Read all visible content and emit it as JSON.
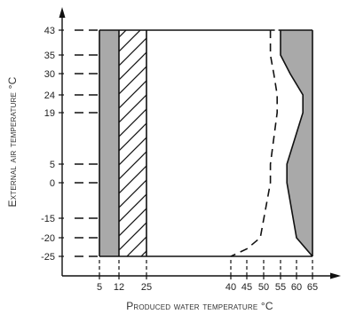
{
  "chart_data": {
    "type": "area",
    "xlabel": "Produced water temperature °C",
    "ylabel": "External air temperature °C",
    "x_ticks": [
      5,
      12,
      25,
      40,
      45,
      50,
      55,
      60,
      65
    ],
    "y_ticks": [
      -25,
      -20,
      -15,
      0,
      5,
      19,
      24,
      30,
      35,
      43
    ],
    "xlim": [
      0,
      67
    ],
    "ylim": [
      -25,
      43
    ],
    "grid": false,
    "boundary_outer": {
      "x": [
        55,
        55,
        58,
        62,
        62,
        57,
        57,
        60,
        65
      ],
      "y": [
        43,
        35,
        30,
        24,
        19,
        5,
        0,
        -20,
        -25
      ]
    },
    "boundary_inner_dashed": {
      "x": [
        52,
        52,
        53,
        54,
        54,
        52,
        52,
        49,
        45,
        40
      ],
      "y": [
        43,
        35,
        30,
        24,
        19,
        5,
        0,
        -20,
        -23,
        -25
      ]
    },
    "fill_color": "#a9a9a9",
    "hatch_region_x": [
      12,
      25
    ]
  }
}
